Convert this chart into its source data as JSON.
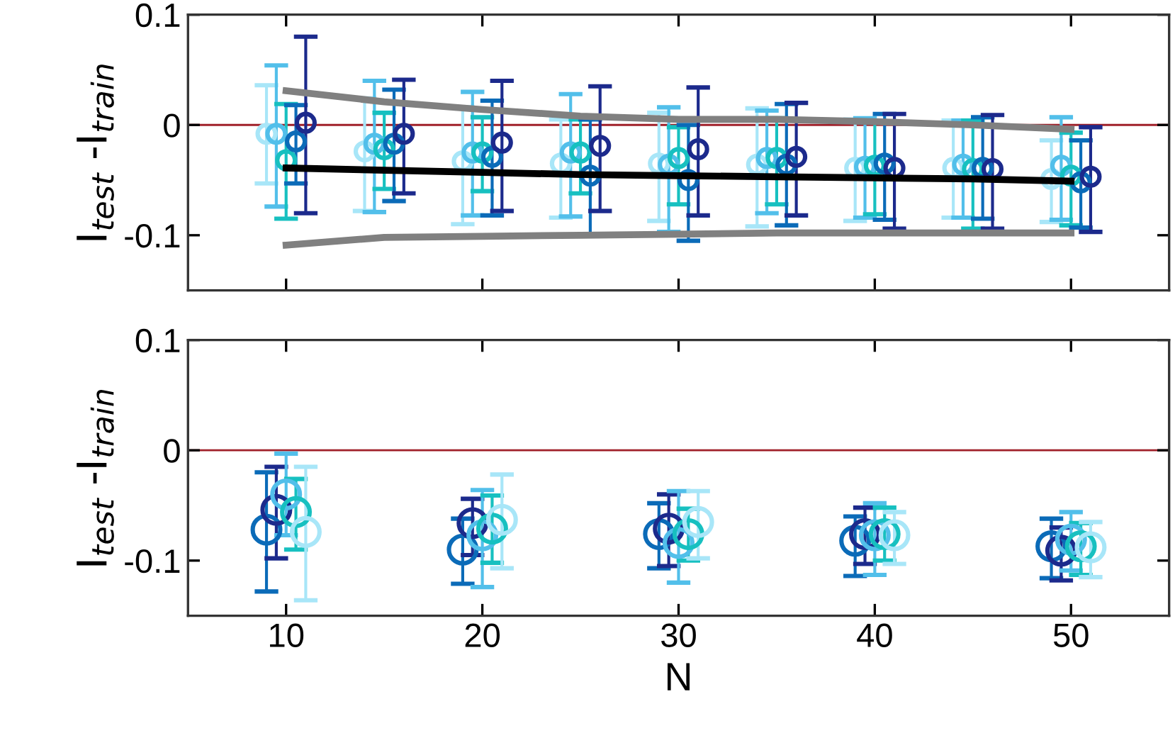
{
  "chart_data": [
    {
      "type": "scatter",
      "ylabel": "I$_{test}$ -I$_{train}$",
      "xlim": [
        5,
        55
      ],
      "xticks": [
        10,
        20,
        30,
        40,
        50
      ],
      "ylim": [
        -0.15,
        0.1
      ],
      "yticks": [
        0.1,
        0,
        {
          "value": -0.1,
          "label": "-0.1"
        }
      ],
      "tick_labels": "y",
      "marker": "circle",
      "grid": false,
      "legend": false,
      "ref_lines": [
        {
          "axis": "y",
          "value": 0,
          "color": "#a0202a"
        }
      ],
      "series": [
        {
          "color": "#a8e6f8",
          "x": [
            9,
            14,
            19,
            24,
            29,
            34,
            39,
            44,
            49
          ],
          "values": [
            -0.008,
            -0.024,
            -0.033,
            -0.035,
            -0.035,
            -0.036,
            -0.039,
            -0.039,
            -0.049
          ],
          "errors": [
            [
              -0.053,
              0.036
            ],
            [
              -0.078,
              0.024
            ],
            [
              -0.09,
              0.016
            ],
            [
              -0.084,
              0.005
            ],
            [
              -0.087,
              0.011
            ],
            [
              -0.092,
              0.015
            ],
            [
              -0.087,
              0.005
            ],
            [
              -0.084,
              0.004
            ],
            [
              -0.088,
              -0.014
            ]
          ]
        },
        {
          "color": "#52bfea",
          "x": [
            9.5,
            14.5,
            19.5,
            24.5,
            29.5,
            34.5,
            39.5,
            44.5,
            49.5
          ],
          "values": [
            -0.008,
            -0.017,
            -0.025,
            -0.025,
            -0.036,
            -0.03,
            -0.038,
            -0.036,
            -0.037
          ],
          "errors": [
            [
              -0.074,
              0.054
            ],
            [
              -0.079,
              0.04
            ],
            [
              -0.082,
              0.03
            ],
            [
              -0.083,
              0.028
            ],
            [
              -0.097,
              0.016
            ],
            [
              -0.08,
              0.013
            ],
            [
              -0.084,
              0.006
            ],
            [
              -0.084,
              0.004
            ],
            [
              -0.086,
              0.007
            ]
          ]
        },
        {
          "color": "#17c0c0",
          "x": [
            10,
            15,
            20,
            25,
            30,
            35,
            40,
            45,
            50
          ],
          "values": [
            -0.032,
            -0.022,
            -0.025,
            -0.025,
            -0.03,
            -0.03,
            -0.037,
            -0.04,
            -0.046
          ],
          "errors": [
            [
              -0.085,
              0.019
            ],
            [
              -0.058,
              0.011
            ],
            [
              -0.06,
              0.007
            ],
            [
              -0.062,
              0.005
            ],
            [
              -0.072,
              -0.002
            ],
            [
              -0.072,
              0.006
            ],
            [
              -0.081,
              0.003
            ],
            [
              -0.094,
              0.004
            ],
            [
              -0.091,
              -0.007
            ]
          ]
        },
        {
          "color": "#0b6bb8",
          "x": [
            10.5,
            15.5,
            20.5,
            25.5,
            30.5,
            35.5,
            40.5,
            45.5,
            50.5
          ],
          "values": [
            -0.015,
            -0.017,
            -0.029,
            -0.046,
            -0.05,
            -0.036,
            -0.035,
            -0.039,
            -0.052
          ],
          "errors": [
            [
              -0.053,
              0.018
            ],
            [
              -0.069,
              0.032
            ],
            [
              -0.082,
              0.022
            ],
            [
              -0.099,
              0.005
            ],
            [
              -0.105,
              0.0
            ],
            [
              -0.091,
              0.019
            ],
            [
              -0.086,
              0.01
            ],
            [
              -0.085,
              0.007
            ],
            [
              -0.093,
              -0.014
            ]
          ]
        },
        {
          "color": "#1c2a8c",
          "x": [
            11,
            16,
            21,
            26,
            31,
            36,
            41,
            46,
            51
          ],
          "values": [
            0.002,
            -0.008,
            -0.016,
            -0.019,
            -0.022,
            -0.029,
            -0.039,
            -0.04,
            -0.047
          ],
          "errors": [
            [
              -0.08,
              0.08
            ],
            [
              -0.062,
              0.041
            ],
            [
              -0.078,
              0.04
            ],
            [
              -0.078,
              0.035
            ],
            [
              -0.082,
              0.034
            ],
            [
              -0.082,
              0.02
            ],
            [
              -0.094,
              0.01
            ],
            [
              -0.094,
              0.009
            ],
            [
              -0.097,
              -0.002
            ]
          ]
        },
        {
          "type": "line",
          "marker": "none",
          "color": "#000000",
          "x": [
            10,
            15,
            20,
            25,
            30,
            35,
            40,
            45,
            50
          ],
          "values": [
            -0.039,
            -0.041,
            -0.043,
            -0.045,
            -0.046,
            -0.047,
            -0.048,
            -0.049,
            -0.051
          ]
        },
        {
          "type": "line",
          "marker": "none",
          "color": "#808080",
          "x": [
            10,
            15,
            20,
            25,
            30,
            35,
            40,
            45,
            50
          ],
          "values": [
            0.031,
            0.021,
            0.014,
            0.008,
            0.005,
            0.005,
            0.003,
            0.0,
            -0.004
          ]
        },
        {
          "type": "line",
          "marker": "none",
          "color": "#808080",
          "x": [
            10,
            15,
            20,
            25,
            30,
            35,
            40,
            45,
            50
          ],
          "values": [
            -0.109,
            -0.102,
            -0.101,
            -0.1,
            -0.099,
            -0.098,
            -0.098,
            -0.098,
            -0.098
          ]
        }
      ]
    },
    {
      "type": "scatter",
      "xlabel": "N",
      "ylabel": "I$_{test}$ -I$_{train}$",
      "xlim": [
        5,
        55
      ],
      "xticks": [
        10,
        20,
        30,
        40,
        50
      ],
      "ylim": [
        -0.15,
        0.1
      ],
      "yticks": [
        0.1,
        0,
        {
          "value": -0.1,
          "label": "-0.1"
        }
      ],
      "marker": "circle",
      "grid": false,
      "legend": false,
      "ref_lines": [
        {
          "axis": "y",
          "value": 0,
          "color": "#a0202a"
        }
      ],
      "series": [
        {
          "color": "#0b6bb8",
          "x": [
            9,
            19,
            29,
            39,
            49
          ],
          "values": [
            -0.072,
            -0.09,
            -0.076,
            -0.082,
            -0.087
          ],
          "errors": [
            [
              -0.128,
              -0.02
            ],
            [
              -0.121,
              -0.062
            ],
            [
              -0.107,
              -0.048
            ],
            [
              -0.114,
              -0.06
            ],
            [
              -0.116,
              -0.062
            ]
          ]
        },
        {
          "color": "#1c2a8c",
          "x": [
            9.5,
            19.5,
            29.5,
            39.5,
            49.5
          ],
          "values": [
            -0.054,
            -0.066,
            -0.071,
            -0.076,
            -0.091
          ],
          "errors": [
            [
              -0.098,
              -0.015
            ],
            [
              -0.095,
              -0.044
            ],
            [
              -0.105,
              -0.04
            ],
            [
              -0.103,
              -0.052
            ],
            [
              -0.118,
              -0.07
            ]
          ]
        },
        {
          "color": "#52bfea",
          "x": [
            10,
            20,
            30,
            40,
            50
          ],
          "values": [
            -0.04,
            -0.077,
            -0.084,
            -0.077,
            -0.081
          ],
          "errors": [
            [
              -0.077,
              -0.003
            ],
            [
              -0.124,
              -0.036
            ],
            [
              -0.12,
              -0.037
            ],
            [
              -0.113,
              -0.048
            ],
            [
              -0.109,
              -0.056
            ]
          ]
        },
        {
          "color": "#17c0c0",
          "x": [
            10.5,
            20.5,
            30.5,
            40.5,
            50.5
          ],
          "values": [
            -0.056,
            -0.071,
            -0.076,
            -0.076,
            -0.087
          ],
          "errors": [
            [
              -0.09,
              -0.026
            ],
            [
              -0.102,
              -0.041
            ],
            [
              -0.1,
              -0.053
            ],
            [
              -0.1,
              -0.052
            ],
            [
              -0.113,
              -0.066
            ]
          ]
        },
        {
          "color": "#a8e6f8",
          "x": [
            11,
            21,
            31,
            41,
            51
          ],
          "values": [
            -0.074,
            -0.063,
            -0.065,
            -0.077,
            -0.088
          ],
          "errors": [
            [
              -0.136,
              -0.015
            ],
            [
              -0.107,
              -0.022
            ],
            [
              -0.098,
              -0.037
            ],
            [
              -0.103,
              -0.056
            ],
            [
              -0.115,
              -0.065
            ]
          ]
        }
      ]
    }
  ]
}
